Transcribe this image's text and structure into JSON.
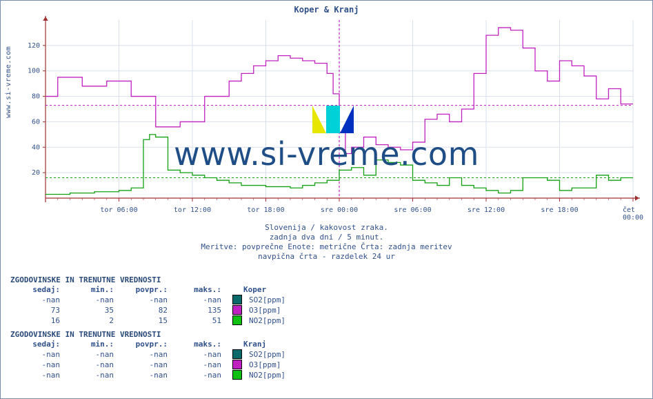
{
  "title": "Koper & Kranj",
  "source_label": "www.si-vreme.com",
  "watermark": "www.si-vreme.com",
  "caption": {
    "l1": "Slovenija / kakovost zraka.",
    "l2": "zadnja dva dni / 5 minut.",
    "l3": "Meritve: povprečne  Enote: metrične  Črta: zadnja meritev",
    "l4": "navpična črta - razdelek 24 ur"
  },
  "chart": {
    "type": "step-line",
    "x_range_hours": 48,
    "x_ticks": [
      {
        "h": 6,
        "label": "tor 06:00"
      },
      {
        "h": 12,
        "label": "tor 12:00"
      },
      {
        "h": 18,
        "label": "tor 18:00"
      },
      {
        "h": 24,
        "label": "sre 00:00"
      },
      {
        "h": 30,
        "label": "sre 06:00"
      },
      {
        "h": 36,
        "label": "sre 12:00"
      },
      {
        "h": 42,
        "label": "sre 18:00"
      },
      {
        "h": 48,
        "label": "čet 00:00"
      }
    ],
    "y_range": [
      0,
      140
    ],
    "y_ticks": [
      20,
      40,
      60,
      80,
      100,
      120
    ],
    "grid_color": "#d9dfeb",
    "axis_color": "#a03030",
    "tick_font_size": 10,
    "arrow_size": 6,
    "minor_x_step_hours": 1,
    "day_marker_x": 24,
    "day_marker_color": "#c020c0",
    "ref_lines": [
      {
        "y": 73,
        "color": "#c020c0",
        "dash": "3,3"
      },
      {
        "y": 16,
        "color": "#10a010",
        "dash": "3,3"
      }
    ],
    "series": [
      {
        "name": "O3",
        "color": "#c020c0",
        "width": 1.3,
        "points": [
          [
            0,
            80
          ],
          [
            1,
            95
          ],
          [
            2,
            95
          ],
          [
            3,
            88
          ],
          [
            4,
            88
          ],
          [
            5,
            92
          ],
          [
            6,
            92
          ],
          [
            7,
            80
          ],
          [
            8,
            80
          ],
          [
            9,
            56
          ],
          [
            10,
            56
          ],
          [
            11,
            60
          ],
          [
            12,
            60
          ],
          [
            13,
            80
          ],
          [
            14,
            80
          ],
          [
            15,
            92
          ],
          [
            16,
            98
          ],
          [
            17,
            104
          ],
          [
            18,
            108
          ],
          [
            19,
            112
          ],
          [
            20,
            110
          ],
          [
            21,
            108
          ],
          [
            22,
            106
          ],
          [
            23,
            98
          ],
          [
            23.5,
            82
          ],
          [
            24,
            52
          ],
          [
            24.5,
            35
          ],
          [
            25,
            40
          ],
          [
            26,
            48
          ],
          [
            27,
            42
          ],
          [
            28,
            40
          ],
          [
            29,
            38
          ],
          [
            30,
            44
          ],
          [
            31,
            62
          ],
          [
            32,
            66
          ],
          [
            33,
            60
          ],
          [
            34,
            70
          ],
          [
            35,
            98
          ],
          [
            36,
            128
          ],
          [
            37,
            134
          ],
          [
            38,
            132
          ],
          [
            39,
            118
          ],
          [
            40,
            100
          ],
          [
            41,
            92
          ],
          [
            42,
            108
          ],
          [
            43,
            104
          ],
          [
            44,
            96
          ],
          [
            45,
            78
          ],
          [
            46,
            86
          ],
          [
            47,
            74
          ],
          [
            48,
            74
          ]
        ]
      },
      {
        "name": "NO2",
        "color": "#10a010",
        "width": 1.3,
        "points": [
          [
            0,
            3
          ],
          [
            1,
            3
          ],
          [
            2,
            4
          ],
          [
            3,
            4
          ],
          [
            4,
            5
          ],
          [
            5,
            5
          ],
          [
            6,
            6
          ],
          [
            7,
            8
          ],
          [
            8,
            46
          ],
          [
            8.5,
            50
          ],
          [
            9,
            48
          ],
          [
            10,
            22
          ],
          [
            11,
            20
          ],
          [
            12,
            18
          ],
          [
            13,
            16
          ],
          [
            14,
            14
          ],
          [
            15,
            12
          ],
          [
            16,
            10
          ],
          [
            17,
            10
          ],
          [
            18,
            9
          ],
          [
            19,
            9
          ],
          [
            20,
            8
          ],
          [
            21,
            10
          ],
          [
            22,
            12
          ],
          [
            23,
            14
          ],
          [
            24,
            22
          ],
          [
            25,
            24
          ],
          [
            26,
            18
          ],
          [
            27,
            30
          ],
          [
            28,
            28
          ],
          [
            29,
            26
          ],
          [
            30,
            14
          ],
          [
            31,
            12
          ],
          [
            32,
            10
          ],
          [
            33,
            16
          ],
          [
            34,
            10
          ],
          [
            35,
            8
          ],
          [
            36,
            6
          ],
          [
            37,
            4
          ],
          [
            38,
            6
          ],
          [
            39,
            16
          ],
          [
            40,
            16
          ],
          [
            41,
            14
          ],
          [
            42,
            6
          ],
          [
            43,
            8
          ],
          [
            44,
            8
          ],
          [
            45,
            18
          ],
          [
            46,
            14
          ],
          [
            47,
            16
          ],
          [
            48,
            16
          ]
        ]
      }
    ]
  },
  "tables": [
    {
      "heading": "ZGODOVINSKE IN TRENUTNE VREDNOSTI",
      "columns": [
        "sedaj:",
        "min.:",
        "povpr.:",
        "maks.:"
      ],
      "location": "Koper",
      "rows": [
        {
          "vals": [
            "-nan",
            "-nan",
            "-nan",
            "-nan"
          ],
          "swatch": "#0a6a6a",
          "param": "SO2[ppm]"
        },
        {
          "vals": [
            "73",
            "35",
            "82",
            "135"
          ],
          "swatch": "#c020c0",
          "param": "O3[ppm]"
        },
        {
          "vals": [
            "16",
            "2",
            "15",
            "51"
          ],
          "swatch": "#10c010",
          "param": "NO2[ppm]"
        }
      ]
    },
    {
      "heading": "ZGODOVINSKE IN TRENUTNE VREDNOSTI",
      "columns": [
        "sedaj:",
        "min.:",
        "povpr.:",
        "maks.:"
      ],
      "location": "Kranj",
      "rows": [
        {
          "vals": [
            "-nan",
            "-nan",
            "-nan",
            "-nan"
          ],
          "swatch": "#0a6a6a",
          "param": "SO2[ppm]"
        },
        {
          "vals": [
            "-nan",
            "-nan",
            "-nan",
            "-nan"
          ],
          "swatch": "#c020c0",
          "param": "O3[ppm]"
        },
        {
          "vals": [
            "-nan",
            "-nan",
            "-nan",
            "-nan"
          ],
          "swatch": "#10c010",
          "param": "NO2[ppm]"
        }
      ]
    }
  ]
}
